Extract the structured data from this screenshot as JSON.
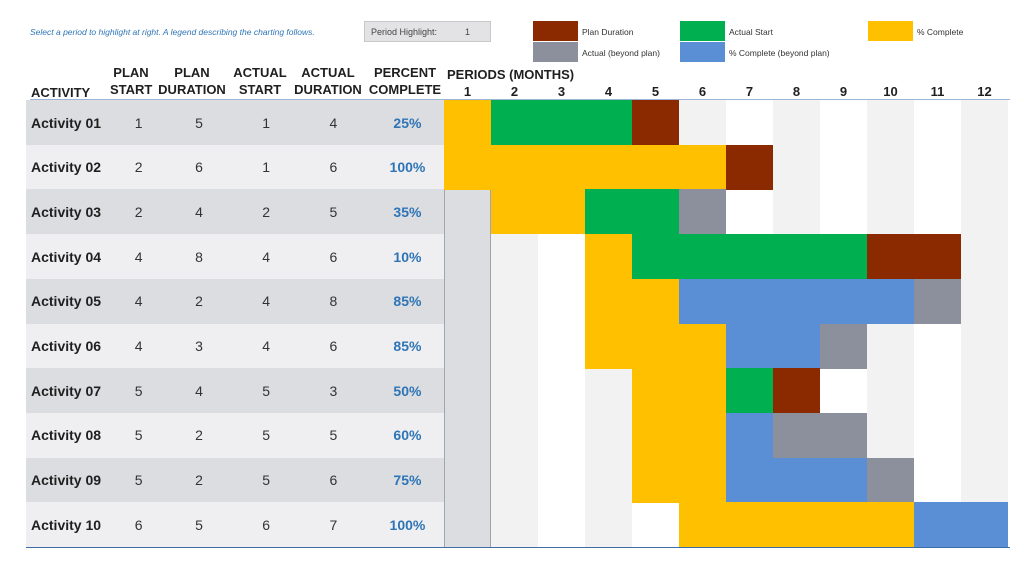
{
  "instruction": "Select a period to highlight at right.  A legend describing the charting follows.",
  "period_highlight": {
    "label": "Period Highlight:",
    "value": "1"
  },
  "legend": [
    {
      "label": "Plan Duration",
      "color": "#8b2a00"
    },
    {
      "label": "Actual Start",
      "color": "#00b050"
    },
    {
      "label": "% Complete",
      "color": "#ffc000"
    },
    {
      "label": "Actual (beyond plan)",
      "color": "#8c8f9c"
    },
    {
      "label": "% Complete (beyond plan)",
      "color": "#5a8fd6"
    }
  ],
  "columns": {
    "activity": "ACTIVITY",
    "plan_start": [
      "PLAN",
      "START"
    ],
    "plan_duration": [
      "PLAN",
      "DURATION"
    ],
    "actual_start": [
      "ACTUAL",
      "START"
    ],
    "actual_duration": [
      "ACTUAL",
      "DURATION"
    ],
    "percent_complete": [
      "PERCENT",
      "COMPLETE"
    ],
    "periods": "PERIODS (MONTHS)"
  },
  "period_numbers": [
    "1",
    "2",
    "3",
    "4",
    "5",
    "6",
    "7",
    "8",
    "9",
    "10",
    "11",
    "12"
  ],
  "colors": {
    "plan": "#8b2a00",
    "actual": "#00b050",
    "complete": "#ffc000",
    "actual_beyond": "#8c8f9c",
    "complete_beyond": "#5a8fd6",
    "cell_light": "#f2f2f2",
    "cell_white": "#ffffff",
    "percent_text": "#2e75b6"
  },
  "activities": [
    {
      "name": "Activity 01",
      "plan_start": 1,
      "plan_duration": 5,
      "actual_start": 1,
      "actual_duration": 4,
      "percent": "25%"
    },
    {
      "name": "Activity 02",
      "plan_start": 2,
      "plan_duration": 6,
      "actual_start": 1,
      "actual_duration": 6,
      "percent": "100%"
    },
    {
      "name": "Activity 03",
      "plan_start": 2,
      "plan_duration": 4,
      "actual_start": 2,
      "actual_duration": 5,
      "percent": "35%"
    },
    {
      "name": "Activity 04",
      "plan_start": 4,
      "plan_duration": 8,
      "actual_start": 4,
      "actual_duration": 6,
      "percent": "10%"
    },
    {
      "name": "Activity 05",
      "plan_start": 4,
      "plan_duration": 2,
      "actual_start": 4,
      "actual_duration": 8,
      "percent": "85%"
    },
    {
      "name": "Activity 06",
      "plan_start": 4,
      "plan_duration": 3,
      "actual_start": 4,
      "actual_duration": 6,
      "percent": "85%"
    },
    {
      "name": "Activity 07",
      "plan_start": 5,
      "plan_duration": 4,
      "actual_start": 5,
      "actual_duration": 3,
      "percent": "50%"
    },
    {
      "name": "Activity 08",
      "plan_start": 5,
      "plan_duration": 2,
      "actual_start": 5,
      "actual_duration": 5,
      "percent": "60%"
    },
    {
      "name": "Activity 09",
      "plan_start": 5,
      "plan_duration": 2,
      "actual_start": 5,
      "actual_duration": 6,
      "percent": "75%"
    },
    {
      "name": "Activity 10",
      "plan_start": 6,
      "plan_duration": 5,
      "actual_start": 6,
      "actual_duration": 7,
      "percent": "100%"
    }
  ]
}
